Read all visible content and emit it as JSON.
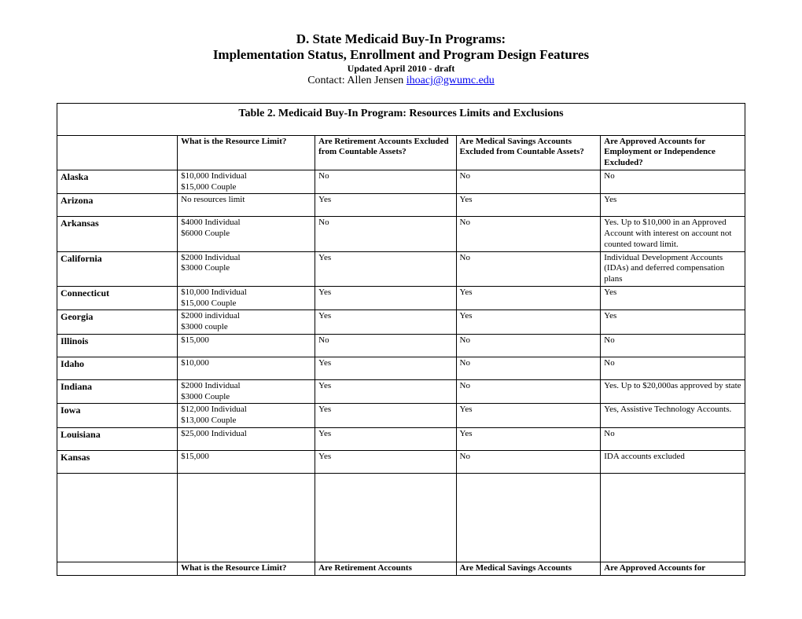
{
  "header": {
    "title1": "D. State Medicaid Buy-In Programs:",
    "title2": "Implementation Status, Enrollment and Program Design Features",
    "updated": "Updated April 2010 - draft",
    "contact_prefix": "Contact: Allen Jensen ",
    "contact_email": "ihoacj@gwumc.edu"
  },
  "table": {
    "caption": "Table 2.   Medicaid Buy-In Program: Resources Limits and Exclusions",
    "columns": [
      "",
      "What is the Resource Limit?",
      "Are Retirement Accounts Excluded from Countable Assets?",
      "Are Medical Savings Accounts Excluded from Countable Assets?",
      "Are Approved Accounts for Employment or Independence Excluded?"
    ],
    "rows": [
      {
        "state": "Alaska",
        "c2": "$10,000 Individual\n$15,000 Couple",
        "c3": "No",
        "c4": "No",
        "c5": "No"
      },
      {
        "state": "Arizona",
        "c2": "No resources limit",
        "c3": "Yes",
        "c4": "Yes",
        "c5": "Yes"
      },
      {
        "state": "Arkansas",
        "c2": "$4000 Individual\n$6000 Couple",
        "c3": "No",
        "c4": "No",
        "c5": "Yes. Up to $10,000 in an Approved Account with interest on account not counted toward limit."
      },
      {
        "state": "California",
        "c2": "$2000 Individual\n$3000 Couple",
        "c3": "Yes",
        "c4": "No",
        "c5": "Individual Development Accounts (IDAs) and deferred compensation plans"
      },
      {
        "state": "Connecticut",
        "c2": "$10,000 Individual\n$15,000 Couple",
        "c3": "Yes",
        "c4": "Yes",
        "c5": "Yes"
      },
      {
        "state": "Georgia",
        "c2": "$2000 individual\n$3000 couple",
        "c3": "Yes",
        "c4": "Yes",
        "c5": "Yes"
      },
      {
        "state": "Illinois",
        "c2": "$15,000",
        "c3": "No",
        "c4": "No",
        "c5": "No"
      },
      {
        "state": "Idaho",
        "c2": "$10,000",
        "c3": "Yes",
        "c4": "No",
        "c5": "No"
      },
      {
        "state": "Indiana",
        "c2": "$2000 Individual\n$3000 Couple",
        "c3": "Yes",
        "c4": "No",
        "c5": "Yes. Up to $20,000as approved by state"
      },
      {
        "state": "Iowa",
        "c2": "$12,000 Individual\n$13,000 Couple",
        "c3": "Yes",
        "c4": "Yes",
        "c5": "Yes, Assistive Technology Accounts."
      },
      {
        "state": "Louisiana",
        "c2": "$25,000 Individual",
        "c3": "Yes",
        "c4": "Yes",
        "c5": "No"
      },
      {
        "state": "Kansas",
        "c2": "$15,000",
        "c3": "Yes",
        "c4": "No",
        "c5": "IDA accounts excluded"
      }
    ],
    "footer_columns": [
      "",
      "What is the Resource Limit?",
      "Are Retirement Accounts",
      "Are Medical Savings Accounts",
      "Are Approved Accounts for"
    ],
    "colors": {
      "border": "#000000",
      "background": "#ffffff",
      "text": "#000000",
      "link": "#0000ee"
    }
  }
}
